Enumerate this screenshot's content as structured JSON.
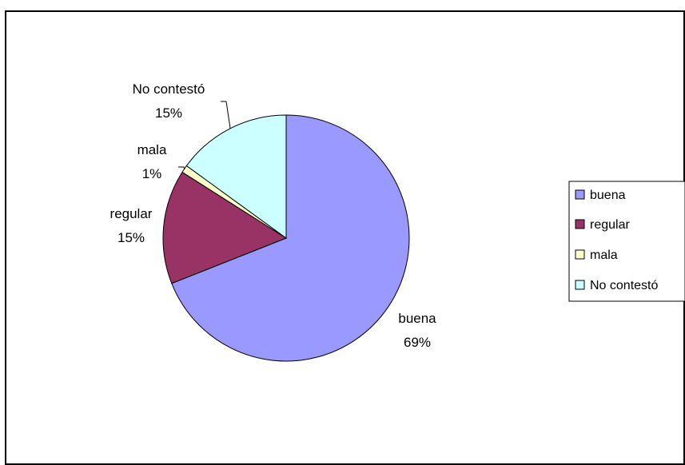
{
  "chart_data": {
    "type": "pie",
    "categories": [
      "buena",
      "regular",
      "mala",
      "No contestó"
    ],
    "values": [
      69,
      15,
      1,
      15
    ],
    "percent_labels": [
      "69%",
      "15%",
      "1%",
      "15%"
    ],
    "colors": [
      "#9999FF",
      "#993366",
      "#FFFFCC",
      "#CCFFFF"
    ],
    "legend": {
      "placement": "right",
      "entries": [
        "buena",
        "regular",
        "mala",
        "No contestó"
      ]
    }
  }
}
